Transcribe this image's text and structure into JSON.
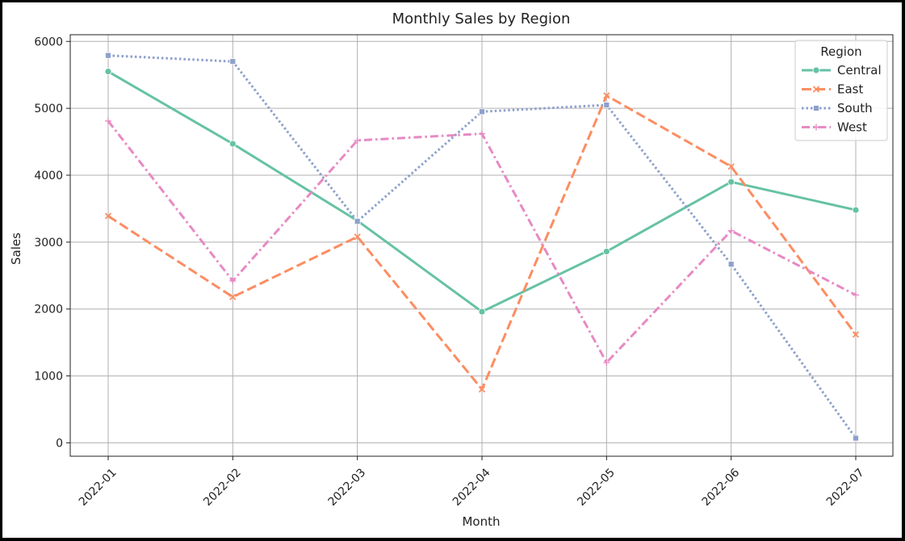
{
  "chart_data": {
    "type": "line",
    "title": "Monthly Sales by Region",
    "xlabel": "Month",
    "ylabel": "Sales",
    "categories": [
      "2022-01",
      "2022-02",
      "2022-03",
      "2022-04",
      "2022-05",
      "2022-06",
      "2022-07"
    ],
    "ylim": [
      -200,
      6100
    ],
    "yticks": [
      0,
      1000,
      2000,
      3000,
      4000,
      5000,
      6000
    ],
    "grid": true,
    "legend": {
      "title": "Region",
      "placement": "top-right"
    },
    "series": [
      {
        "name": "Central",
        "color": "#66c2a5",
        "dash": "solid",
        "marker": "circle",
        "values": [
          5550,
          4470,
          3320,
          1960,
          2860,
          3900,
          3480
        ]
      },
      {
        "name": "East",
        "color": "#fc8d62",
        "dash": "dashed",
        "marker": "x",
        "values": [
          3390,
          2180,
          3080,
          800,
          5190,
          4130,
          1620
        ]
      },
      {
        "name": "South",
        "color": "#8da0cb",
        "dash": "dotted",
        "marker": "square",
        "values": [
          5790,
          5700,
          3310,
          4950,
          5050,
          2670,
          70
        ]
      },
      {
        "name": "West",
        "color": "#e78ac3",
        "dash": "dashdot",
        "marker": "plus",
        "values": [
          4810,
          2420,
          4520,
          4620,
          1200,
          3170,
          2210
        ]
      }
    ]
  }
}
